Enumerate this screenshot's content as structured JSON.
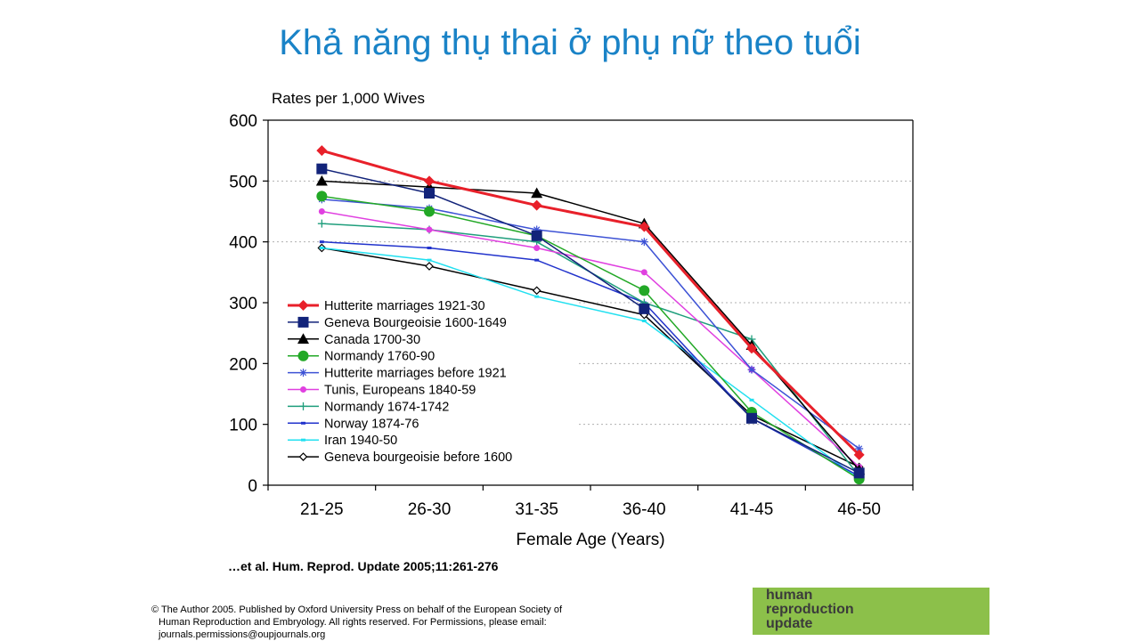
{
  "slide": {
    "title": "Khả năng thụ thai ở phụ nữ theo tuổi",
    "citation": "…et al. Hum. Reprod. Update 2005;11:261-276",
    "copyright_lines": [
      "© The Author 2005. Published by Oxford University Press on behalf of the European Society of",
      "Human Reproduction and Embryology. All rights reserved. For Permissions, please email:",
      "journals.permissions@oupjournals.org"
    ],
    "logo_lines": [
      "human",
      "reproduction",
      "update"
    ],
    "logo_color": "#8cc04a",
    "title_color": "#1a83c7"
  },
  "chart_data": {
    "type": "line",
    "title": "",
    "ylabel": "Rates per 1,000 Wives",
    "xlabel": "Female Age (Years)",
    "categories": [
      "21-25",
      "26-30",
      "31-35",
      "36-40",
      "41-45",
      "46-50"
    ],
    "ylim": [
      0,
      600
    ],
    "yticks": [
      0,
      100,
      200,
      300,
      400,
      500,
      600
    ],
    "grid": "horizontal dotted",
    "legend_position": "lower-left",
    "series": [
      {
        "name": "Hutterite marriages 1921-30",
        "values": [
          550,
          500,
          460,
          425,
          225,
          50
        ],
        "color": "#e8202a",
        "marker": "diamond",
        "width": 3
      },
      {
        "name": "Geneva Bourgeoisie 1600-1649",
        "values": [
          520,
          480,
          410,
          290,
          110,
          20
        ],
        "color": "#12237a",
        "marker": "square",
        "width": 1.5
      },
      {
        "name": "Canada 1700-30",
        "values": [
          500,
          490,
          480,
          430,
          230,
          25
        ],
        "color": "#000000",
        "marker": "triangle",
        "width": 1.5
      },
      {
        "name": "Normandy 1760-90",
        "values": [
          475,
          450,
          410,
          320,
          120,
          10
        ],
        "color": "#22a826",
        "marker": "circle",
        "width": 1.5
      },
      {
        "name": "Hutterite marriages before 1921",
        "values": [
          470,
          455,
          420,
          400,
          190,
          60
        ],
        "color": "#3d52d5",
        "marker": "star",
        "width": 1.5
      },
      {
        "name": "Tunis, Europeans 1840-59",
        "values": [
          450,
          420,
          390,
          350,
          190,
          30
        ],
        "color": "#e040e0",
        "marker": "dot",
        "width": 1.5
      },
      {
        "name": "Normandy 1674-1742",
        "values": [
          430,
          420,
          400,
          300,
          240,
          15
        ],
        "color": "#1f9e7c",
        "marker": "plus",
        "width": 1.5
      },
      {
        "name": "Norway 1874-76",
        "values": [
          400,
          390,
          370,
          300,
          110,
          15
        ],
        "color": "#2233cc",
        "marker": "smallsquare",
        "width": 1.5
      },
      {
        "name": "Iran 1940-50",
        "values": [
          390,
          370,
          310,
          270,
          140,
          10
        ],
        "color": "#22e0f0",
        "marker": "smallsquare",
        "width": 1.5
      },
      {
        "name": "Geneva bourgeoisie before 1600",
        "values": [
          390,
          360,
          320,
          280,
          115,
          30
        ],
        "color": "#000000",
        "marker": "opendiamond",
        "width": 1.5
      }
    ]
  }
}
